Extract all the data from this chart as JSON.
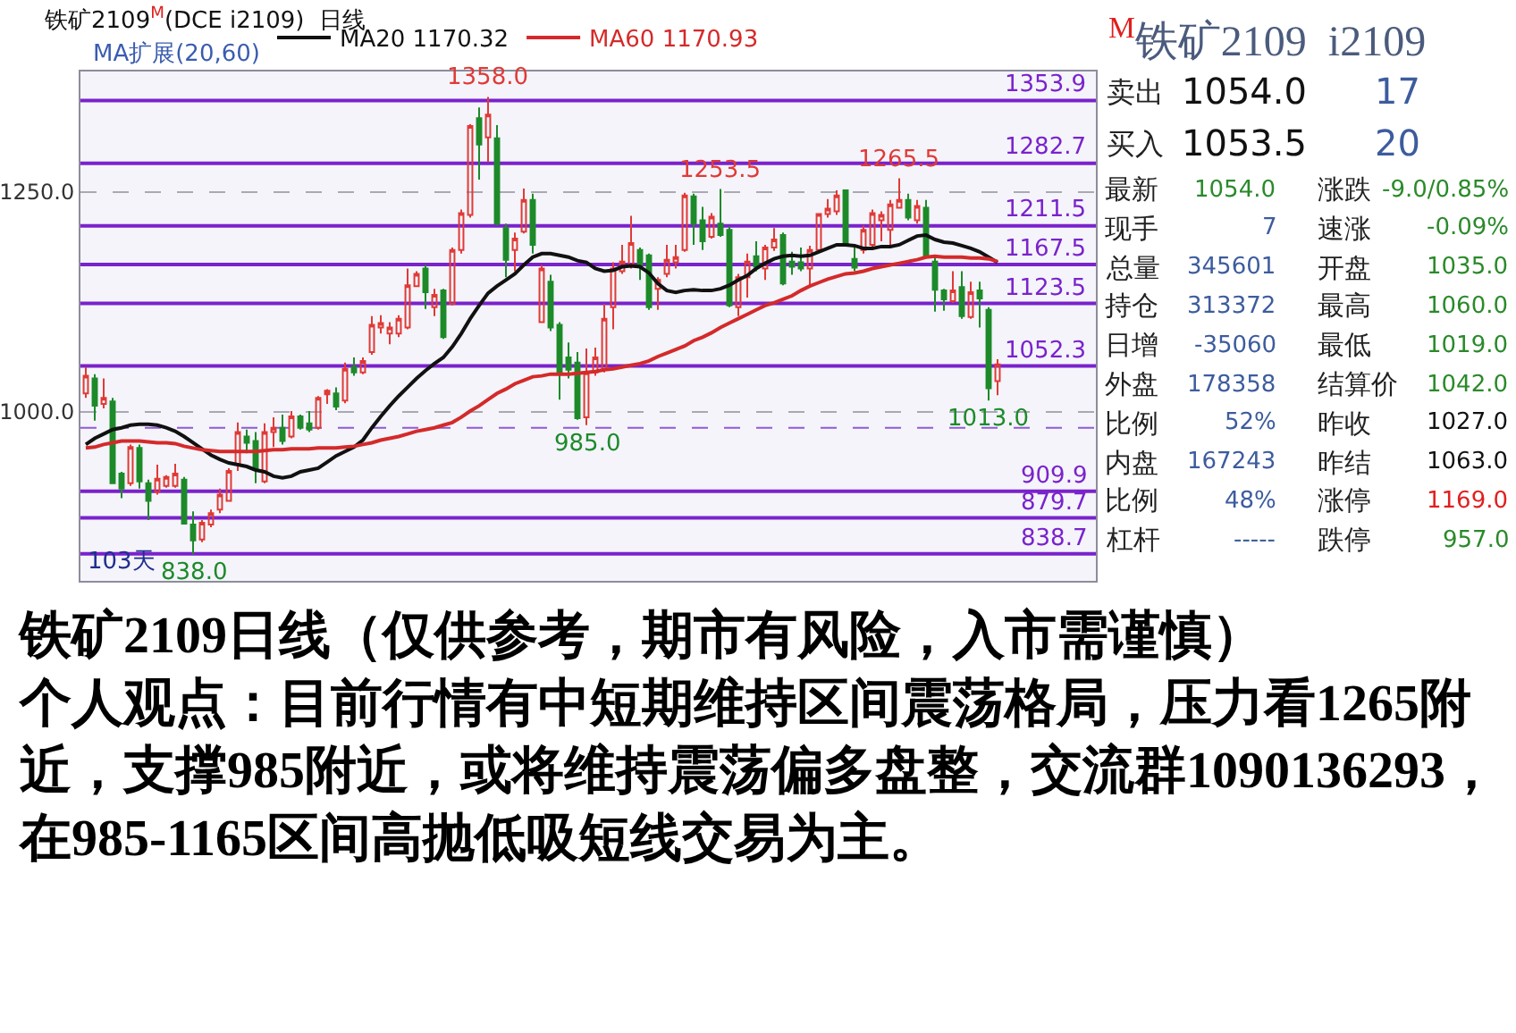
{
  "chart_data": [
    {
      "type": "candlestick",
      "title": "铁矿2109$^{M}$(DCE i2109)  日线",
      "subtitle": "MA扩展(20,60)",
      "categories": [
        null,
        null,
        null,
        null,
        null,
        null,
        null,
        null,
        null,
        null,
        null,
        null,
        null,
        null,
        null,
        null,
        null,
        null,
        null,
        null,
        null,
        null,
        null,
        null,
        null,
        null,
        null,
        null,
        null,
        null,
        null,
        null,
        null,
        null,
        null,
        null,
        null,
        null,
        null,
        null,
        null,
        null,
        null,
        null,
        null,
        null,
        null,
        null,
        null,
        null,
        null,
        null,
        null,
        null,
        null,
        null,
        null,
        null,
        null,
        null,
        null,
        null,
        null,
        null,
        null,
        null,
        null,
        null,
        null,
        null,
        null,
        null,
        null,
        null,
        null,
        null,
        null,
        null,
        null,
        null,
        null,
        null,
        null,
        null,
        null,
        null,
        null,
        null,
        null,
        null,
        null,
        null,
        null,
        null,
        null,
        null,
        null,
        null,
        null,
        null,
        null,
        null,
        null
      ],
      "ohlc": [
        [
          1021,
          1051,
          1016,
          1041
        ],
        [
          1038,
          1043,
          990,
          1007
        ],
        [
          1009,
          1038,
          1004,
          1016
        ],
        [
          1012,
          1016,
          918,
          919
        ],
        [
          930,
          932,
          902,
          913
        ],
        [
          919,
          963,
          916,
          960
        ],
        [
          959,
          963,
          913,
          921
        ],
        [
          919,
          923,
          877,
          899
        ],
        [
          909,
          940,
          906,
          924
        ],
        [
          916,
          928,
          914,
          926
        ],
        [
          916,
          941,
          914,
          930
        ],
        [
          923,
          926,
          872,
          873
        ],
        [
          872,
          887,
          838,
          854
        ],
        [
          855,
          877,
          852,
          874
        ],
        [
          872,
          889,
          869,
          885
        ],
        [
          889,
          913,
          885,
          906
        ],
        [
          899,
          936,
          898,
          933
        ],
        [
          940,
          988,
          933,
          977
        ],
        [
          972,
          980,
          953,
          965
        ],
        [
          967,
          977,
          919,
          934
        ],
        [
          921,
          987,
          919,
          977
        ],
        [
          977,
          994,
          960,
          982
        ],
        [
          982,
          997,
          963,
          967
        ],
        [
          972,
          1001,
          970,
          995
        ],
        [
          995,
          997,
          980,
          982
        ],
        [
          987,
          1001,
          977,
          980
        ],
        [
          982,
          1018,
          980,
          1016
        ],
        [
          1020,
          1026,
          1009,
          1024
        ],
        [
          1021,
          1028,
          1002,
          1006
        ],
        [
          1013,
          1056,
          1010,
          1049
        ],
        [
          1051,
          1062,
          1041,
          1045
        ],
        [
          1045,
          1062,
          1043,
          1058
        ],
        [
          1068,
          1109,
          1065,
          1099
        ],
        [
          1096,
          1110,
          1089,
          1101
        ],
        [
          1089,
          1102,
          1077,
          1096
        ],
        [
          1089,
          1110,
          1085,
          1106
        ],
        [
          1096,
          1163,
          1094,
          1144
        ],
        [
          1143,
          1160,
          1142,
          1157
        ],
        [
          1163,
          1167,
          1117,
          1136
        ],
        [
          1119,
          1140,
          1109,
          1133
        ],
        [
          1138,
          1140,
          1083,
          1085
        ],
        [
          1123,
          1187,
          1121,
          1184
        ],
        [
          1184,
          1230,
          1180,
          1226
        ],
        [
          1224,
          1327,
          1221,
          1325
        ],
        [
          1334,
          1346,
          1264,
          1304
        ],
        [
          1312,
          1358,
          1284,
          1338
        ],
        [
          1311,
          1326,
          1212,
          1214
        ],
        [
          1209,
          1214,
          1153,
          1173
        ],
        [
          1184,
          1204,
          1160,
          1197
        ],
        [
          1205,
          1254,
          1203,
          1241
        ],
        [
          1241,
          1248,
          1180,
          1190
        ],
        [
          1102,
          1167,
          1101,
          1163
        ],
        [
          1148,
          1156,
          1092,
          1096
        ],
        [
          1099,
          1102,
          1014,
          1045
        ],
        [
          1062,
          1079,
          1038,
          1048
        ],
        [
          1056,
          1068,
          991,
          993
        ],
        [
          994,
          1072,
          985,
          1045
        ],
        [
          1045,
          1073,
          1041,
          1062
        ],
        [
          1048,
          1123,
          1045,
          1106
        ],
        [
          1119,
          1170,
          1094,
          1163
        ],
        [
          1160,
          1190,
          1157,
          1171
        ],
        [
          1167,
          1223,
          1163,
          1192
        ],
        [
          1184,
          1187,
          1150,
          1167
        ],
        [
          1178,
          1180,
          1116,
          1119
        ],
        [
          1140,
          1153,
          1116,
          1150
        ],
        [
          1157,
          1190,
          1153,
          1173
        ],
        [
          1170,
          1190,
          1163,
          1176
        ],
        [
          1184,
          1249,
          1182,
          1246
        ],
        [
          1245,
          1248,
          1190,
          1214
        ],
        [
          1218,
          1233,
          1184,
          1194
        ],
        [
          1199,
          1226,
          1197,
          1222
        ],
        [
          1214,
          1253.5,
          1199,
          1201
        ],
        [
          1207,
          1211,
          1119,
          1121
        ],
        [
          1119,
          1157,
          1109,
          1153
        ],
        [
          1153,
          1180,
          1130,
          1171
        ],
        [
          1177,
          1194,
          1160,
          1165
        ],
        [
          1163,
          1190,
          1150,
          1187
        ],
        [
          1187,
          1209,
          1183,
          1196
        ],
        [
          1201,
          1204,
          1144,
          1146
        ],
        [
          1171,
          1182,
          1156,
          1165
        ],
        [
          1170,
          1187,
          1160,
          1163
        ],
        [
          1163,
          1189,
          1143,
          1184
        ],
        [
          1184,
          1226,
          1182,
          1225
        ],
        [
          1225,
          1242,
          1221,
          1231
        ],
        [
          1228,
          1252,
          1224,
          1246
        ],
        [
          1252,
          1253,
          1189,
          1191
        ],
        [
          1174,
          1191,
          1160,
          1164
        ],
        [
          1184,
          1212,
          1180,
          1207
        ],
        [
          1190,
          1230,
          1187,
          1226
        ],
        [
          1218,
          1228,
          1194,
          1224
        ],
        [
          1207,
          1241,
          1190,
          1236
        ],
        [
          1232,
          1265.5,
          1231,
          1241
        ],
        [
          1241,
          1248,
          1218,
          1221
        ],
        [
          1218,
          1241,
          1214,
          1234
        ],
        [
          1232,
          1241,
          1175,
          1176
        ],
        [
          1171,
          1177,
          1114,
          1139
        ],
        [
          1138,
          1140,
          1115,
          1128
        ],
        [
          1126,
          1160,
          1124,
          1138
        ],
        [
          1142,
          1160,
          1106,
          1109
        ],
        [
          1108,
          1148,
          1106,
          1136
        ],
        [
          1138,
          1148,
          1096,
          1129
        ],
        [
          1116,
          1119,
          1013,
          1027
        ],
        [
          1035,
          1060,
          1019,
          1054
        ]
      ],
      "colors": [
        "#e03a36",
        "#1d8a2a",
        "#e03a36",
        "#1d8a2a",
        "#1d8a2a",
        "#e03a36",
        "#1d8a2a",
        "#1d8a2a",
        "#e03a36",
        "#e03a36",
        "#e03a36",
        "#1d8a2a",
        "#1d8a2a",
        "#e03a36",
        "#e03a36",
        "#e03a36",
        "#e03a36",
        "#e03a36",
        "#1d8a2a",
        "#1d8a2a",
        "#e03a36",
        "#e03a36",
        "#1d8a2a",
        "#e03a36",
        "#1d8a2a",
        "#1d8a2a",
        "#e03a36",
        "#e03a36",
        "#1d8a2a",
        "#e03a36",
        "#1d8a2a",
        "#e03a36",
        "#e03a36",
        "#e03a36",
        "#e03a36",
        "#e03a36",
        "#e03a36",
        "#e03a36",
        "#1d8a2a",
        "#e03a36",
        "#1d8a2a",
        "#e03a36",
        "#e03a36",
        "#e03a36",
        "#1d8a2a",
        "#e03a36",
        "#1d8a2a",
        "#1d8a2a",
        "#e03a36",
        "#e03a36",
        "#1d8a2a",
        "#e03a36",
        "#1d8a2a",
        "#1d8a2a",
        "#1d8a2a",
        "#1d8a2a",
        "#e03a36",
        "#e03a36",
        "#e03a36",
        "#e03a36",
        "#e03a36",
        "#e03a36",
        "#1d8a2a",
        "#1d8a2a",
        "#e03a36",
        "#e03a36",
        "#e03a36",
        "#e03a36",
        "#1d8a2a",
        "#1d8a2a",
        "#e03a36",
        "#1d8a2a",
        "#1d8a2a",
        "#e03a36",
        "#e03a36",
        "#1d8a2a",
        "#e03a36",
        "#e03a36",
        "#1d8a2a",
        "#1d8a2a",
        "#1d8a2a",
        "#e03a36",
        "#e03a36",
        "#e03a36",
        "#e03a36",
        "#1d8a2a",
        "#1d8a2a",
        "#e03a36",
        "#e03a36",
        "#e03a36",
        "#e03a36",
        "#e03a36",
        "#1d8a2a",
        "#e03a36",
        "#1d8a2a",
        "#1d8a2a",
        "#1d8a2a",
        "#e03a36",
        "#1d8a2a",
        "#e03a36",
        "#1d8a2a",
        "#1d8a2a",
        "#e03a36"
      ],
      "series": [
        {
          "name": "MA20 1170.32",
          "type": "line",
          "color": "#111111",
          "values": [
            963,
            970,
            975,
            980,
            982,
            985,
            986,
            986,
            985,
            982,
            978,
            972,
            965,
            958,
            951,
            946,
            942,
            940,
            938,
            934,
            932,
            927,
            925,
            927,
            932,
            934,
            936,
            943,
            950,
            955,
            960,
            968,
            982,
            995,
            1007,
            1018,
            1028,
            1038,
            1047,
            1055,
            1062,
            1074,
            1089,
            1106,
            1121,
            1135,
            1143,
            1150,
            1157,
            1167,
            1176,
            1180,
            1180,
            1178,
            1176,
            1172,
            1170,
            1163,
            1160,
            1161,
            1165,
            1166,
            1165,
            1158,
            1146,
            1138,
            1136,
            1138,
            1139,
            1138,
            1138,
            1140,
            1144,
            1150,
            1155,
            1163,
            1169,
            1174,
            1177,
            1178,
            1177,
            1178,
            1182,
            1186,
            1190,
            1190,
            1189,
            1186,
            1186,
            1188,
            1188,
            1190,
            1195,
            1200,
            1201,
            1196,
            1193,
            1192,
            1189,
            1186,
            1182,
            1176,
            1170
          ]
        },
        {
          "name": "MA60 1170.93",
          "type": "line",
          "color": "#d42a2a",
          "values": [
            959,
            960,
            963,
            965,
            967,
            967,
            967,
            966,
            965,
            965,
            964,
            961,
            959,
            957,
            956,
            955,
            955,
            955,
            955,
            955,
            956,
            957,
            957,
            958,
            958,
            958,
            959,
            959,
            959,
            960,
            961,
            963,
            965,
            968,
            970,
            972,
            975,
            978,
            980,
            982,
            985,
            988,
            994,
            1001,
            1007,
            1014,
            1021,
            1026,
            1032,
            1036,
            1040,
            1041,
            1043,
            1043,
            1043,
            1044,
            1045,
            1046,
            1048,
            1049,
            1051,
            1053,
            1055,
            1058,
            1063,
            1067,
            1071,
            1075,
            1081,
            1085,
            1090,
            1096,
            1101,
            1106,
            1111,
            1116,
            1121,
            1124,
            1128,
            1132,
            1138,
            1143,
            1147,
            1151,
            1154,
            1157,
            1158,
            1160,
            1163,
            1165,
            1167,
            1169,
            1171,
            1173,
            1176,
            1177,
            1176,
            1176,
            1176,
            1175,
            1175,
            1174,
            1171
          ]
        }
      ],
      "ylim": [
        808,
        1387
      ],
      "yticks": [
        {
          "value": 1000,
          "label": "1000.0"
        },
        {
          "value": 1250,
          "label": "1250.0"
        }
      ],
      "grid": "y",
      "tick_labels": "y",
      "legend": "top left",
      "ref_lines": [
        {
          "axis": "y",
          "value": 1353.9,
          "label": "1353.9",
          "color": "#7a22cc"
        },
        {
          "axis": "y",
          "value": 1282.7,
          "label": "1282.7",
          "color": "#7a22cc"
        },
        {
          "axis": "y",
          "value": 1211.5,
          "label": "1211.5",
          "color": "#7a22cc"
        },
        {
          "axis": "y",
          "value": 1167.5,
          "label": "1167.5",
          "color": "#7a22cc"
        },
        {
          "axis": "y",
          "value": 1123.5,
          "label": "1123.5",
          "color": "#7a22cc"
        },
        {
          "axis": "y",
          "value": 1052.3,
          "label": "1052.3",
          "color": "#7a22cc"
        },
        {
          "axis": "y",
          "value": 909.9,
          "label": "909.9",
          "color": "#7a22cc"
        },
        {
          "axis": "y",
          "value": 879.7,
          "label": "879.7",
          "color": "#7a22cc"
        },
        {
          "axis": "y",
          "value": 838.7,
          "label": "838.7",
          "color": "#7a22cc"
        },
        {
          "axis": "y",
          "value": 982,
          "color": "#8e5ad8",
          "line_style": "dashed"
        }
      ],
      "annotations": [
        {
          "text": "1358.0",
          "y": 1358
        },
        {
          "text": "1253.5",
          "y": 1253.5
        },
        {
          "text": "1265.5",
          "y": 1265.5
        },
        {
          "text": "985.0",
          "y": 985
        },
        {
          "text": "1013.0",
          "y": 1013
        },
        {
          "text": "838.0",
          "y": 838
        },
        "103天",
        "铁矿2109日线（仅供参考，期市有风险，入市需谨慎）",
        "个人观点：目前行情有中短期维持区间震荡格局，压力看1265附近，支撑985附近，或将维持震荡偏多盘整，交流群1090136293，在985-1165区间高抛低吸短线交易为主。"
      ]
    },
    {
      "type": "other",
      "title": "$^{M}$铁矿2109  i2109",
      "annotations": [
        "卖出",
        "1054.0",
        "17",
        "买入",
        "1053.5",
        "20",
        "最新",
        "1054.0",
        "涨跌",
        "-9.0/0.85%",
        "现手",
        "7",
        "速涨",
        "-0.09%",
        "总量",
        "345601",
        "开盘",
        "1035.0",
        "持仓",
        "313372",
        "最高",
        "1060.0",
        "日增",
        "-35060",
        "最低",
        "1019.0",
        "外盘",
        "178358",
        "结算价",
        "1042.0",
        "比例",
        "52%",
        "昨收",
        "1027.0",
        "内盘",
        "167243",
        "昨结",
        "1063.0",
        "比例",
        "48%",
        "涨停",
        "1169.0",
        "杠杆",
        "-----",
        "跌停",
        "957.0"
      ],
      "colors": [
        "#222222",
        "#111111",
        "#3d5c9e",
        "#222222",
        "#111111",
        "#3d5c9e",
        "#222222",
        "#2a8a2a",
        "#222222",
        "#2a8a2a",
        "#222222",
        "#3d5c9e",
        "#222222",
        "#2a8a2a",
        "#222222",
        "#3d5c9e",
        "#222222",
        "#2a8a2a",
        "#222222",
        "#3d5c9e",
        "#222222",
        "#2a8a2a",
        "#222222",
        "#3d5c9e",
        "#222222",
        "#2a8a2a",
        "#222222",
        "#3d5c9e",
        "#222222",
        "#2a8a2a",
        "#222222",
        "#3d5c9e",
        "#222222",
        "#111111",
        "#222222",
        "#3d5c9e",
        "#222222",
        "#111111",
        "#222222",
        "#3d5c9e",
        "#222222",
        "#e02020",
        "#222222",
        "#3d5c9e",
        "#222222",
        "#2a8a2a"
      ]
    }
  ]
}
